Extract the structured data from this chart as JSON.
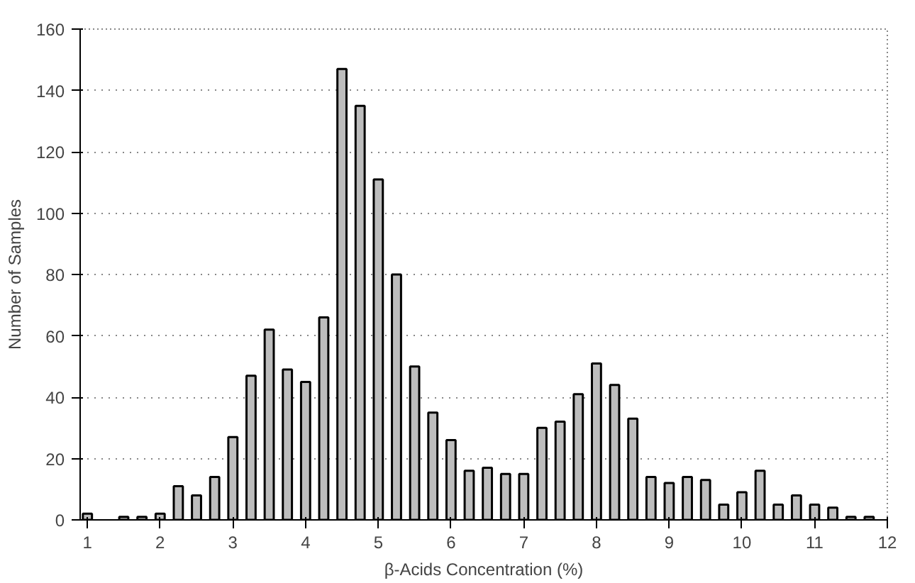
{
  "chart_data": {
    "type": "bar",
    "xlabel": "β-Acids Concentration (%)",
    "ylabel": "Number of Samples",
    "x": [
      1.0,
      1.25,
      1.5,
      1.75,
      2.0,
      2.25,
      2.5,
      2.75,
      3.0,
      3.25,
      3.5,
      3.75,
      4.0,
      4.25,
      4.5,
      4.75,
      5.0,
      5.25,
      5.5,
      5.75,
      6.0,
      6.25,
      6.5,
      6.75,
      7.0,
      7.25,
      7.5,
      7.75,
      8.0,
      8.25,
      8.5,
      8.75,
      9.0,
      9.25,
      9.5,
      9.75,
      10.0,
      10.25,
      10.5,
      10.75,
      11.0,
      11.25,
      11.5,
      11.75
    ],
    "values": [
      2,
      0,
      1,
      1,
      2,
      11,
      8,
      14,
      27,
      47,
      62,
      49,
      45,
      66,
      147,
      135,
      111,
      80,
      50,
      35,
      26,
      16,
      17,
      15,
      15,
      30,
      32,
      41,
      51,
      44,
      33,
      14,
      12,
      14,
      13,
      5,
      9,
      16,
      5,
      8,
      5,
      4,
      1,
      1
    ],
    "color": "#bdbdbd",
    "xlim": [
      0.9,
      12
    ],
    "ylim": [
      0,
      160
    ],
    "xticks": [
      1,
      2,
      3,
      4,
      5,
      6,
      7,
      8,
      9,
      10,
      11,
      12
    ],
    "yticks": [
      0,
      20,
      40,
      60,
      80,
      100,
      120,
      140,
      160
    ],
    "grid": "y"
  }
}
